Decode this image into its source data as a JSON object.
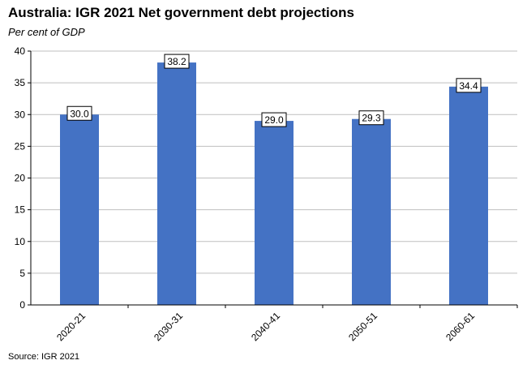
{
  "chart_data": {
    "type": "bar",
    "title": "Australia: IGR 2021 Net government debt projections",
    "ylabel": "Per cent of GDP",
    "categories": [
      "2020-21",
      "2030-31",
      "2040-41",
      "2050-51",
      "2060-61"
    ],
    "values": [
      30.0,
      38.2,
      29.0,
      29.3,
      34.4
    ],
    "data_labels": [
      "30.0",
      "38.2",
      "29.0",
      "29.3",
      "34.4"
    ],
    "ylim": [
      0,
      40
    ],
    "yticks": [
      0,
      5,
      10,
      15,
      20,
      25,
      30,
      35,
      40
    ],
    "grid": true,
    "legend": "none",
    "bar_color": "#4472C4",
    "source": "Source: IGR 2021"
  }
}
